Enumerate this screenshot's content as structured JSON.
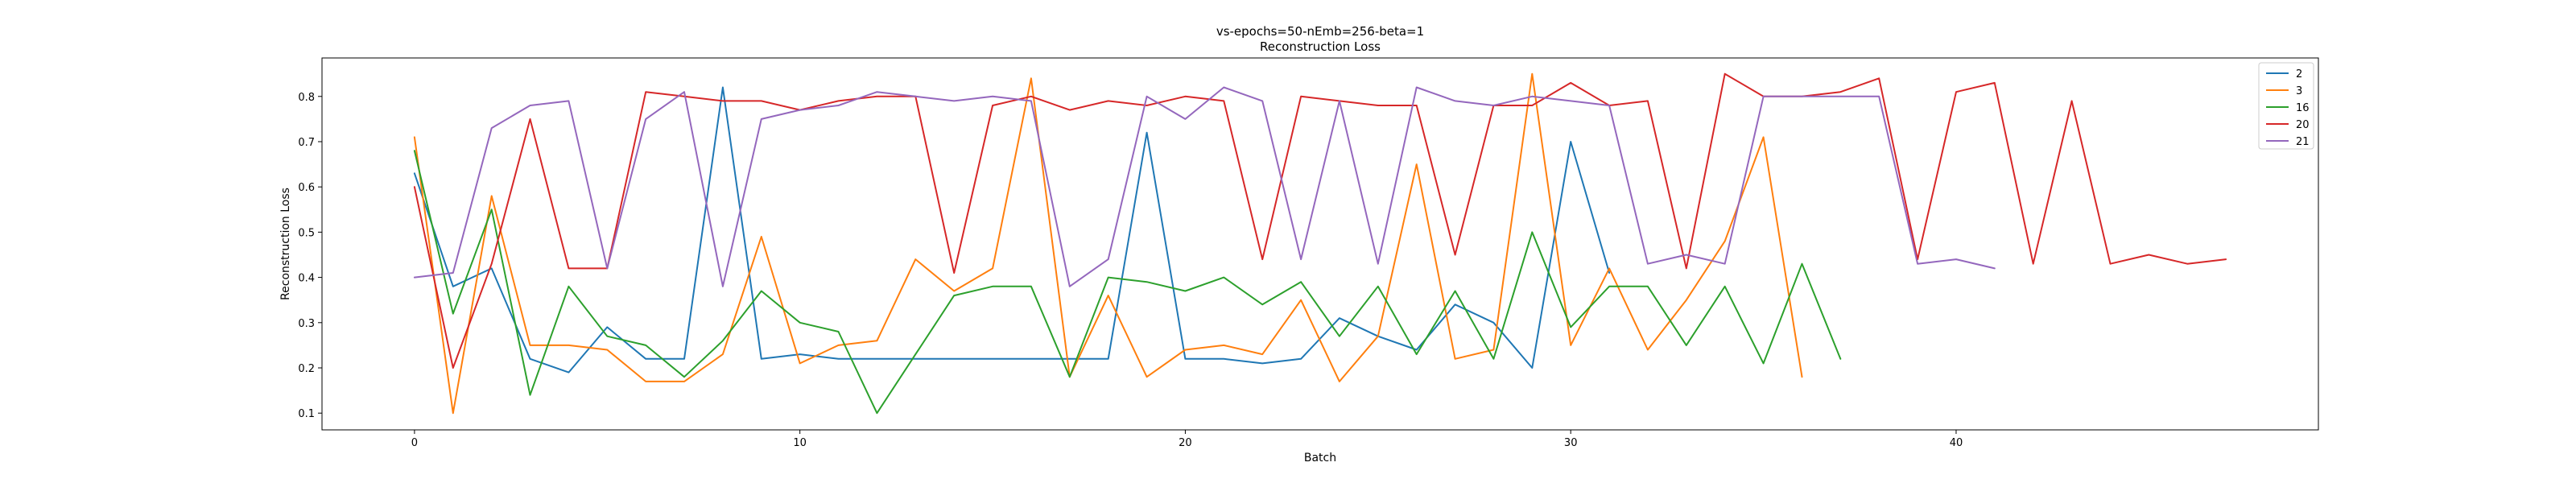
{
  "chart_data": {
    "type": "line",
    "title": "vs-epochs=50-nEmb=256-beta=1",
    "subtitle": "Reconstruction Loss",
    "xlabel": "Batch",
    "ylabel": "Reconstruction Loss",
    "xlim": [
      -2.4,
      49.4
    ],
    "ylim": [
      0.063,
      0.885
    ],
    "xticks": [
      0,
      10,
      20,
      30,
      40
    ],
    "yticks": [
      0.1,
      0.2,
      0.3,
      0.4,
      0.5,
      0.6,
      0.7,
      0.8
    ],
    "grid": false,
    "legend_position": "top-right",
    "series": [
      {
        "name": "2",
        "color": "#1f77b4",
        "values": [
          0.63,
          0.38,
          0.42,
          0.22,
          0.19,
          0.29,
          0.22,
          0.22,
          0.82,
          0.22,
          0.23,
          0.22,
          0.22,
          0.22,
          0.22,
          0.22,
          0.22,
          0.22,
          0.22,
          0.72,
          0.22,
          0.22,
          0.21,
          0.22,
          0.31,
          0.27,
          0.24,
          0.34,
          0.3,
          0.2,
          0.7,
          0.41
        ]
      },
      {
        "name": "3",
        "color": "#ff7f0e",
        "values": [
          0.71,
          0.1,
          0.58,
          0.25,
          0.25,
          0.24,
          0.17,
          0.17,
          0.23,
          0.49,
          0.21,
          0.25,
          0.26,
          0.44,
          0.37,
          0.42,
          0.84,
          0.18,
          0.36,
          0.18,
          0.24,
          0.25,
          0.23,
          0.35,
          0.17,
          0.27,
          0.65,
          0.22,
          0.24,
          0.85,
          0.25,
          0.42,
          0.24,
          0.35,
          0.48,
          0.71,
          0.18
        ]
      },
      {
        "name": "16",
        "color": "#2ca02c",
        "values": [
          0.68,
          0.32,
          0.55,
          0.14,
          0.38,
          0.27,
          0.25,
          0.18,
          0.26,
          0.37,
          0.3,
          0.28,
          0.1,
          0.23,
          0.36,
          0.38,
          0.38,
          0.18,
          0.4,
          0.39,
          0.37,
          0.4,
          0.34,
          0.39,
          0.27,
          0.38,
          0.23,
          0.37,
          0.22,
          0.5,
          0.29,
          0.38,
          0.38,
          0.25,
          0.38,
          0.21,
          0.43,
          0.22
        ]
      },
      {
        "name": "20",
        "color": "#d62728",
        "values": [
          0.6,
          0.2,
          0.43,
          0.75,
          0.42,
          0.42,
          0.81,
          0.8,
          0.79,
          0.79,
          0.77,
          0.79,
          0.8,
          0.8,
          0.41,
          0.78,
          0.8,
          0.77,
          0.79,
          0.78,
          0.8,
          0.79,
          0.44,
          0.8,
          0.79,
          0.78,
          0.78,
          0.45,
          0.78,
          0.78,
          0.83,
          0.78,
          0.79,
          0.42,
          0.85,
          0.8,
          0.8,
          0.81,
          0.84,
          0.44,
          0.81,
          0.83,
          0.43,
          0.79,
          0.43,
          0.45,
          0.43,
          0.44
        ]
      },
      {
        "name": "21",
        "color": "#9467bd",
        "values": [
          0.4,
          0.41,
          0.73,
          0.78,
          0.79,
          0.42,
          0.75,
          0.81,
          0.38,
          0.75,
          0.77,
          0.78,
          0.81,
          0.8,
          0.79,
          0.8,
          0.79,
          0.38,
          0.44,
          0.8,
          0.75,
          0.82,
          0.79,
          0.44,
          0.79,
          0.43,
          0.82,
          0.79,
          0.78,
          0.8,
          0.79,
          0.78,
          0.43,
          0.45,
          0.43,
          0.8,
          0.8,
          0.8,
          0.8,
          0.43,
          0.44,
          0.42
        ]
      }
    ]
  }
}
